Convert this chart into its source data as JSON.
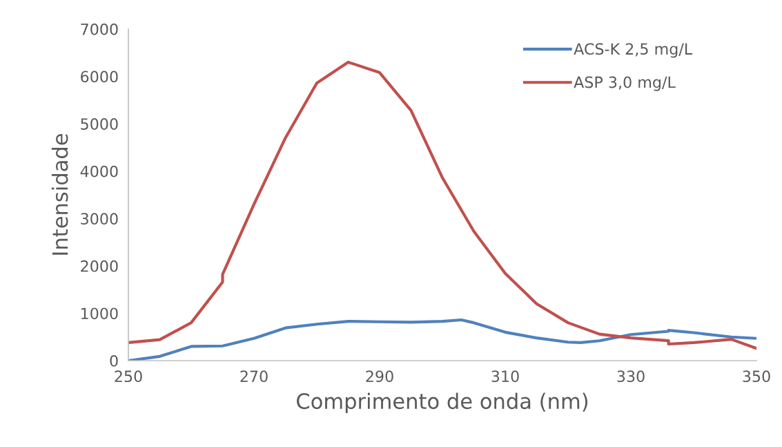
{
  "chart_data": {
    "type": "line",
    "xlabel": "Comprimento de onda (nm)",
    "ylabel": "Intensidade",
    "xlim": [
      250,
      350
    ],
    "xticks": [
      250,
      270,
      290,
      310,
      330,
      350
    ],
    "ylim": [
      0,
      7000
    ],
    "yticks": [
      0,
      1000,
      2000,
      3000,
      4000,
      5000,
      6000,
      7000
    ],
    "grid": false,
    "legend": "top right",
    "marker": "none",
    "line_style": "solid",
    "series": [
      {
        "name": "ACS-K 2,5 mg/L",
        "color": "#4f81bd",
        "x": [
          250,
          255,
          260,
          265,
          270,
          275,
          280,
          285,
          290,
          295,
          300,
          303,
          305,
          310,
          315,
          320,
          322,
          325,
          330,
          336,
          336,
          340,
          346,
          350
        ],
        "values": [
          0,
          90,
          300,
          310,
          470,
          690,
          770,
          830,
          820,
          810,
          830,
          860,
          800,
          600,
          480,
          390,
          380,
          420,
          550,
          620,
          640,
          590,
          500,
          470
        ]
      },
      {
        "name": "ASP 3,0 mg/L",
        "color": "#c0504d",
        "x": [
          250,
          255,
          260,
          265,
          265,
          270,
          275,
          280,
          285,
          290,
          295,
          300,
          305,
          310,
          315,
          320,
          325,
          330,
          336,
          336,
          340,
          346,
          350
        ],
        "values": [
          380,
          443,
          800,
          1660,
          1820,
          3300,
          4700,
          5860,
          6300,
          6080,
          5280,
          3860,
          2730,
          1840,
          1200,
          800,
          560,
          480,
          420,
          350,
          380,
          450,
          260
        ]
      }
    ]
  }
}
